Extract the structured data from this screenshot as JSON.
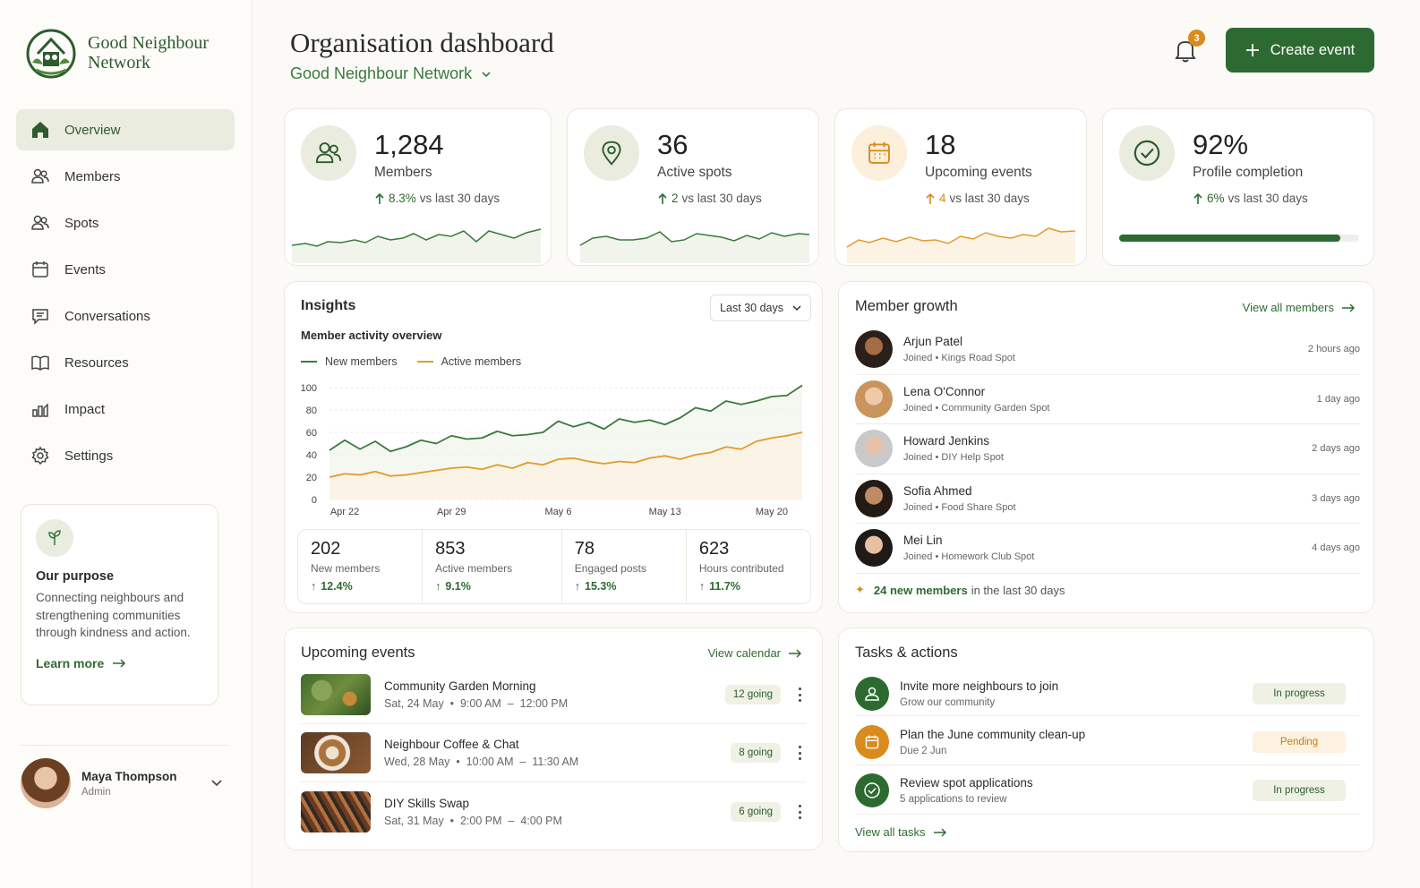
{
  "brand": {
    "name_line1": "Good Neighbour",
    "name_line2": "Network"
  },
  "nav": [
    {
      "label": "Overview",
      "icon": "home-icon",
      "active": true
    },
    {
      "label": "Members",
      "icon": "users-icon"
    },
    {
      "label": "Spots",
      "icon": "users-icon"
    },
    {
      "label": "Events",
      "icon": "calendar-icon"
    },
    {
      "label": "Conversations",
      "icon": "chat-icon"
    },
    {
      "label": "Resources",
      "icon": "book-icon"
    },
    {
      "label": "Impact",
      "icon": "chart-icon"
    },
    {
      "label": "Settings",
      "icon": "gear-icon"
    }
  ],
  "purpose": {
    "title": "Our purpose",
    "text": "Connecting neighbours and strengthening communities through kindness and action.",
    "link": "Learn more"
  },
  "user": {
    "name": "Maya Thompson",
    "role": "Admin"
  },
  "header": {
    "title": "Organisation dashboard",
    "org": "Good Neighbour Network",
    "notifications": "3",
    "create_label": "Create event"
  },
  "colors": {
    "accent": "#2d6a31",
    "orange": "#d98b1d",
    "green_line": "#3b7a3d"
  },
  "stats": [
    {
      "value": "1,284",
      "label": "Members",
      "delta": "8.3%",
      "delta_suffix": "vs last 30 days",
      "icon": "users-icon"
    },
    {
      "value": "36",
      "label": "Active spots",
      "delta": "2",
      "delta_suffix": "vs last 30 days",
      "icon": "location-pin-icon"
    },
    {
      "value": "18",
      "label": "Upcoming events",
      "delta": "4",
      "delta_suffix": "vs last 30 days",
      "icon": "calendar-icon"
    },
    {
      "value": "92%",
      "label": "Profile completion",
      "delta": "6%",
      "delta_suffix": "vs last 30 days",
      "icon": "check-circle-icon",
      "progress": 0.92
    }
  ],
  "insights": {
    "title": "Insights",
    "range": "Last 30 days",
    "subtitle": "Member activity overview",
    "metrics": [
      {
        "value": "202",
        "label": "New members",
        "delta": "12.4%"
      },
      {
        "value": "853",
        "label": "Active members",
        "delta": "9.1%"
      },
      {
        "value": "78",
        "label": "Engaged posts",
        "delta": "15.3%"
      },
      {
        "value": "623",
        "label": "Hours contributed",
        "delta": "11.7%"
      }
    ]
  },
  "chart_data": {
    "type": "line",
    "title": "Member activity overview",
    "x": [
      "Apr 21",
      "Apr 22",
      "Apr 23",
      "Apr 24",
      "Apr 25",
      "Apr 26",
      "Apr 27",
      "Apr 28",
      "Apr 29",
      "Apr 30",
      "May 1",
      "May 2",
      "May 3",
      "May 4",
      "May 5",
      "May 6",
      "May 7",
      "May 8",
      "May 9",
      "May 10",
      "May 11",
      "May 12",
      "May 13",
      "May 14",
      "May 15",
      "May 16",
      "May 17",
      "May 18",
      "May 19",
      "May 20",
      "May 21",
      "May 22"
    ],
    "x_ticks": [
      "Apr 22",
      "Apr 29",
      "May 6",
      "May 13",
      "May 20"
    ],
    "ylim": [
      0,
      100
    ],
    "y_ticks": [
      0,
      20,
      40,
      60,
      80,
      100
    ],
    "grid": true,
    "legend": "top-left",
    "series": [
      {
        "name": "New members",
        "color": "#3b7a3d",
        "values": [
          44,
          53,
          45,
          52,
          43,
          47,
          53,
          50,
          57,
          54,
          55,
          61,
          57,
          58,
          60,
          70,
          65,
          69,
          63,
          72,
          69,
          71,
          67,
          73,
          82,
          79,
          88,
          85,
          88,
          92,
          93,
          102
        ]
      },
      {
        "name": "Active members",
        "color": "#e39a2b",
        "values": [
          20,
          23,
          22,
          25,
          21,
          22,
          24,
          26,
          28,
          29,
          27,
          31,
          28,
          33,
          31,
          36,
          37,
          34,
          32,
          34,
          33,
          37,
          39,
          36,
          40,
          42,
          47,
          45,
          52,
          55,
          57,
          60
        ]
      }
    ]
  },
  "growth": {
    "title": "Member growth",
    "link": "View all members",
    "joined": "Joined",
    "members": [
      {
        "name": "Arjun Patel",
        "spot": "Kings Road Spot",
        "time": "2 hours ago"
      },
      {
        "name": "Lena O'Connor",
        "spot": "Community Garden Spot",
        "time": "1 day ago"
      },
      {
        "name": "Howard Jenkins",
        "spot": "DIY Help Spot",
        "time": "2 days ago"
      },
      {
        "name": "Sofia Ahmed",
        "spot": "Food Share Spot",
        "time": "3 days ago"
      },
      {
        "name": "Mei Lin",
        "spot": "Homework Club Spot",
        "time": "4 days ago"
      }
    ],
    "footer_count": "24 new members",
    "footer_suffix": "in the last 30 days"
  },
  "events": {
    "title": "Upcoming events",
    "link": "View calendar",
    "items": [
      {
        "title": "Community Garden Morning",
        "date": "Sat, 24 May  •  9:00 AM  –  12:00 PM",
        "going": "12 going"
      },
      {
        "title": "Neighbour Coffee & Chat",
        "date": "Wed, 28 May  •  10:00 AM  –  11:30 AM",
        "going": "8 going"
      },
      {
        "title": "DIY Skills Swap",
        "date": "Sat, 31 May  •  2:00 PM  –  4:00 PM",
        "going": "6 going"
      }
    ]
  },
  "tasks": {
    "title": "Tasks & actions",
    "link": "View all tasks",
    "items": [
      {
        "title": "Invite more neighbours to join",
        "sub": "Grow our community",
        "status": "In progress"
      },
      {
        "title": "Plan the June community clean-up",
        "sub": "Due 2 Jun",
        "status": "Pending"
      },
      {
        "title": "Review spot applications",
        "sub": "5 applications to review",
        "status": "In progress"
      }
    ]
  }
}
